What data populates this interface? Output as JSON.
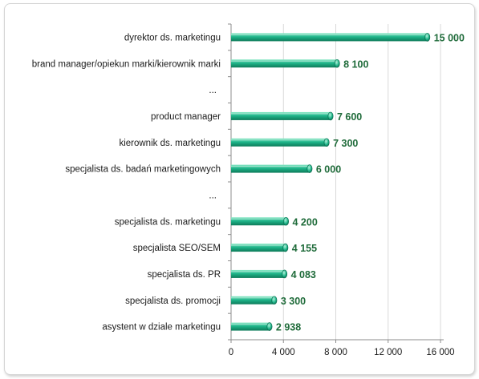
{
  "chart_data": {
    "type": "bar",
    "orientation": "horizontal",
    "categories": [
      "dyrektor ds. marketingu",
      "brand manager/opiekun marki/kierownik marki",
      "...",
      "product manager",
      "kierownik ds. marketingu",
      "specjalista ds. badań marketingowych",
      "...",
      "specjalista ds. marketingu",
      "specjalista SEO/SEM",
      "specjalista ds. PR",
      "specjalista ds. promocji",
      "asystent w dziale marketingu"
    ],
    "values": [
      15000,
      8100,
      null,
      7600,
      7300,
      6000,
      null,
      4200,
      4155,
      4083,
      3300,
      2938
    ],
    "value_labels": [
      "15 000",
      "8 100",
      "",
      "7 600",
      "7 300",
      "6 000",
      "",
      "4 200",
      "4 155",
      "4 083",
      "3 300",
      "2 938"
    ],
    "xlim": [
      0,
      16000
    ],
    "x_ticks": [
      0,
      4000,
      8000,
      12000,
      16000
    ],
    "x_tick_labels": [
      "0",
      "4 000",
      "8 000",
      "12 000",
      "16 000"
    ],
    "grid": "vertical",
    "legend": "none",
    "colors": {
      "bar": "#1fb58a",
      "bar_light": "#8ae8c6",
      "bar_dark": "#0d7a59",
      "value_label": "#1f6b3a",
      "grid": "#d9d9d9"
    }
  }
}
